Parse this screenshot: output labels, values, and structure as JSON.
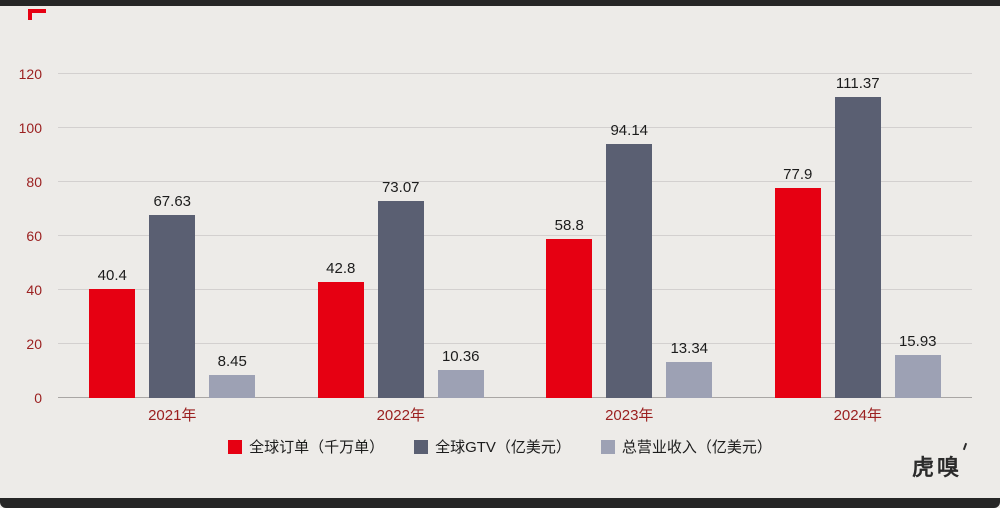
{
  "chart_data": {
    "type": "bar",
    "categories": [
      "2021年",
      "2022年",
      "2023年",
      "2024年"
    ],
    "series": [
      {
        "name": "全球订单（千万单）",
        "color": "#e60012",
        "values": [
          40.4,
          42.8,
          58.8,
          77.9
        ]
      },
      {
        "name": "全球GTV（亿美元）",
        "color": "#5a5f72",
        "values": [
          67.63,
          73.07,
          94.14,
          111.37
        ]
      },
      {
        "name": "总营业收入（亿美元）",
        "color": "#9da1b4",
        "values": [
          8.45,
          10.36,
          13.34,
          15.93
        ]
      }
    ],
    "ylim": [
      0,
      120
    ],
    "ytick_interval": 20,
    "grid": true,
    "legend_position": "bottom",
    "value_labels": true
  },
  "branding": {
    "logo_text": "虎嗅",
    "accent_color": "#e60012"
  }
}
